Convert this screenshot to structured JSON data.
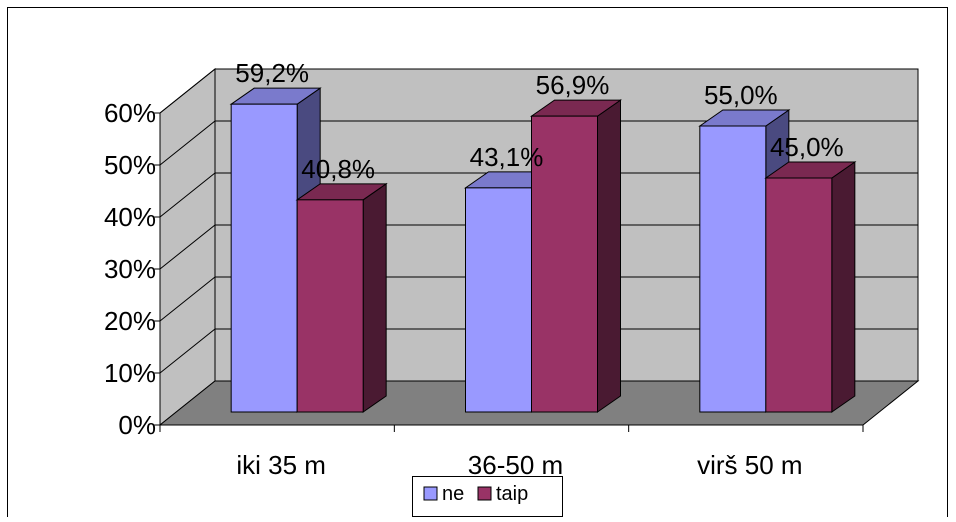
{
  "chart_data": {
    "type": "bar",
    "style": "3d-clustered-column",
    "categories": [
      "iki 35 m",
      "36-50 m",
      "virš 50 m"
    ],
    "series": [
      {
        "name": "ne",
        "values": [
          59.2,
          43.1,
          55.0
        ],
        "labels": [
          "59,2%",
          "43,1%",
          "55,0%"
        ]
      },
      {
        "name": "taip",
        "values": [
          40.8,
          56.9,
          45.0
        ],
        "labels": [
          "40,8%",
          "56,9%",
          "45,0%"
        ]
      }
    ],
    "y_ticks": [
      "0%",
      "10%",
      "20%",
      "30%",
      "40%",
      "50%",
      "60%"
    ],
    "ylim": [
      0,
      60
    ],
    "grid": true,
    "legend_position": "bottom",
    "colors": {
      "ne_front": "#9999ff",
      "ne_side": "#4a4a80",
      "ne_top": "#7a7acc",
      "taip_front": "#993366",
      "taip_side": "#4a1a32",
      "taip_top": "#7a2951",
      "wall": "#c0c0c0",
      "floor": "#808080",
      "gridline": "#000000"
    },
    "title": "",
    "xlabel": "",
    "ylabel": ""
  }
}
